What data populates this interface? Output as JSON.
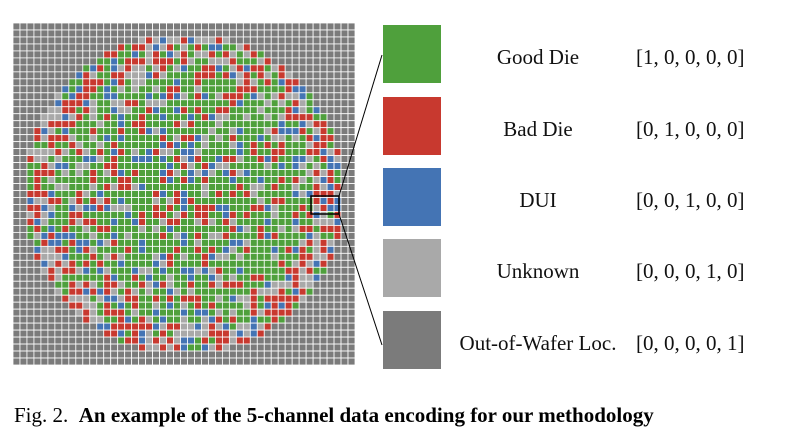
{
  "colors": {
    "good": "#4fa03c",
    "bad": "#c8392f",
    "dui": "#4474b4",
    "unknown": "#a9a9a9",
    "outside": "#7b7b7b",
    "grid_line": "#ffffff"
  },
  "legend": [
    {
      "label": "Good Die",
      "vector": "[1, 0, 0, 0, 0]",
      "color_key": "good"
    },
    {
      "label": "Bad Die",
      "vector": "[0, 1, 0, 0, 0]",
      "color_key": "bad"
    },
    {
      "label": "DUI",
      "vector": "[0, 0, 1, 0, 0]",
      "color_key": "dui"
    },
    {
      "label": "Unknown",
      "vector": "[0, 0, 0, 1, 0]",
      "color_key": "unknown"
    },
    {
      "label": "Out-of-Wafer Loc.",
      "vector": "[0, 0, 0, 0, 1]",
      "color_key": "outside"
    }
  ],
  "caption": {
    "prefix": "Fig. 2.",
    "text": "An example of the 5-channel data encoding for our methodology"
  }
}
